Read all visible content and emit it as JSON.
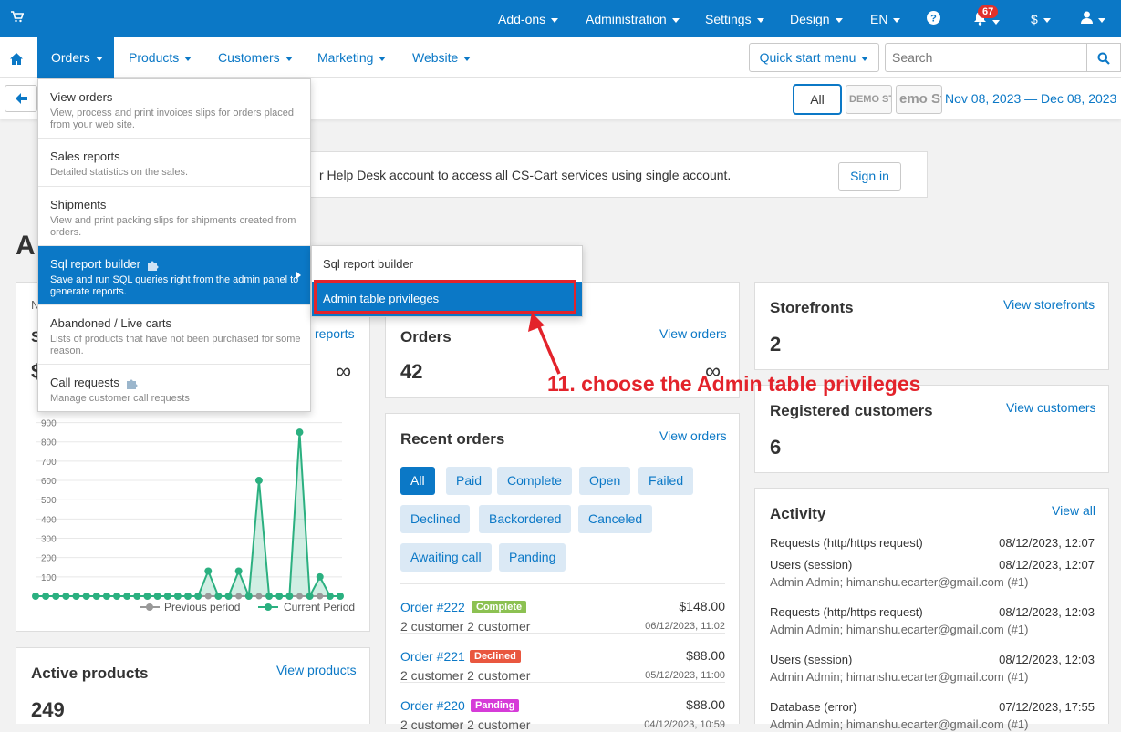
{
  "topbar": {
    "items": [
      "Add-ons",
      "Administration",
      "Settings",
      "Design",
      "EN"
    ],
    "notifications_count": "67",
    "currency": "$"
  },
  "nav": {
    "items": [
      "Orders",
      "Products",
      "Customers",
      "Marketing",
      "Website"
    ],
    "quick_start": "Quick start menu",
    "search_placeholder": "Search"
  },
  "subbar": {
    "all_label": "All",
    "store1": "DEMO STO",
    "store2": "emo Sto",
    "date_range": "Nov 08, 2023 — Dec 08, 2023"
  },
  "helpdesk": {
    "text": "r Help Desk account to access all CS-Cart services using single account.",
    "sign_in": "Sign in"
  },
  "page_title": "A",
  "orders_menu": [
    {
      "title": "View orders",
      "desc": "View, process and print invoices slips for orders placed from your web site."
    },
    {
      "title": "Sales reports",
      "desc": "Detailed statistics on the sales."
    },
    {
      "title": "Shipments",
      "desc": "View and print packing slips for shipments created from orders."
    },
    {
      "title": "Sql report builder",
      "desc": "Save and run SQL queries right from the admin panel to generate reports."
    },
    {
      "title": "Abandoned / Live carts",
      "desc": "Lists of products that have not been purchased for some reason."
    },
    {
      "title": "Call requests",
      "desc": "Manage customer call requests"
    }
  ],
  "submenu": [
    "Sql report builder",
    "Admin table privileges"
  ],
  "annotation": "11. choose the Admin table privileges",
  "sales_panel": {
    "partial_n": "N",
    "partial_s": "S",
    "partial_dollar": "$",
    "link": "reports",
    "infinity": "∞",
    "legend_prev": "Previous period",
    "legend_current": "Current Period"
  },
  "chart_data": {
    "type": "line",
    "y_ticks": [
      100,
      200,
      300,
      400,
      500,
      600,
      700,
      800,
      900
    ],
    "ylim": [
      0,
      950
    ],
    "series": [
      {
        "name": "Previous period",
        "values": [
          0,
          0,
          0,
          0,
          0,
          0,
          0,
          0,
          0,
          0,
          0,
          0,
          0,
          0,
          0,
          0,
          0,
          0,
          0,
          0,
          0,
          0,
          0,
          0,
          0,
          0,
          0,
          0,
          0,
          0,
          0
        ]
      },
      {
        "name": "Current Period",
        "values": [
          0,
          0,
          0,
          0,
          0,
          0,
          0,
          0,
          0,
          0,
          0,
          0,
          0,
          0,
          0,
          0,
          0,
          130,
          0,
          0,
          130,
          0,
          600,
          0,
          0,
          0,
          850,
          0,
          100,
          0,
          0
        ]
      }
    ]
  },
  "orders_panel": {
    "title": "Orders",
    "link": "View orders",
    "value": "42",
    "infinity": "∞"
  },
  "storefronts_panel": {
    "title": "Storefronts",
    "link": "View storefronts",
    "value": "2"
  },
  "customers_panel": {
    "title": "Registered customers",
    "link": "View customers",
    "value": "6"
  },
  "recent_orders": {
    "title": "Recent orders",
    "link": "View orders",
    "filters": [
      "All",
      "Paid",
      "Complete",
      "Open",
      "Failed",
      "Declined",
      "Backordered",
      "Canceled",
      "Awaiting call",
      "Panding"
    ],
    "orders": [
      {
        "id": "Order #222",
        "status": "Complete",
        "status_color": "#8cc152",
        "amount": "$148.00",
        "customer": "2 customer 2 customer",
        "date": "06/12/2023, 11:02"
      },
      {
        "id": "Order #221",
        "status": "Declined",
        "status_color": "#e9573f",
        "amount": "$88.00",
        "customer": "2 customer 2 customer",
        "date": "05/12/2023, 11:00"
      },
      {
        "id": "Order #220",
        "status": "Panding",
        "status_color": "#d63bd8",
        "amount": "$88.00",
        "customer": "2 customer 2 customer",
        "date": "04/12/2023, 10:59"
      }
    ]
  },
  "active_products": {
    "title": "Active products",
    "link": "View products",
    "value": "249"
  },
  "activity": {
    "title": "Activity",
    "link": "View all",
    "entries": [
      {
        "type": "Requests (http/https request)",
        "date": "08/12/2023, 12:07",
        "sub": ""
      },
      {
        "type": "Users (session)",
        "date": "08/12/2023, 12:07",
        "sub": "Admin Admin; himanshu.ecarter@gmail.com (#1)"
      },
      {
        "type": "Requests (http/https request)",
        "date": "08/12/2023, 12:03",
        "sub": "Admin Admin; himanshu.ecarter@gmail.com (#1)"
      },
      {
        "type": "Users (session)",
        "date": "08/12/2023, 12:03",
        "sub": "Admin Admin; himanshu.ecarter@gmail.com (#1)"
      },
      {
        "type": "Database (error)",
        "date": "07/12/2023, 17:55",
        "sub": "Admin Admin; himanshu.ecarter@gmail.com (#1)"
      }
    ]
  }
}
